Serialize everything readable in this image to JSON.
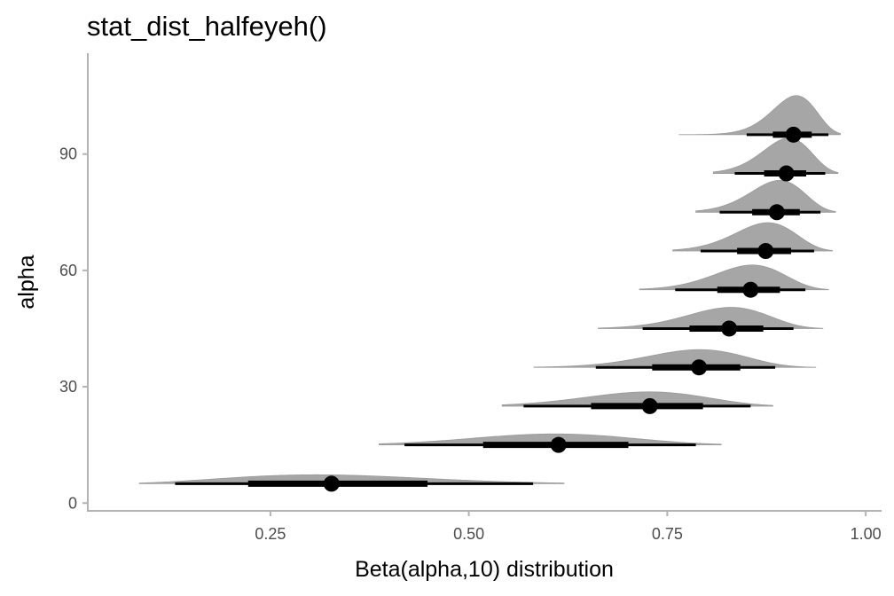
{
  "chart_data": {
    "type": "halfeye",
    "title": "stat_dist_halfeyeh()",
    "xlabel": "Beta(alpha,10) distribution",
    "ylabel": "alpha",
    "xlim": [
      0.02,
      1.02
    ],
    "ylim": [
      -2,
      116
    ],
    "x_ticks": [
      0.25,
      0.5,
      0.75,
      1.0
    ],
    "x_tick_labels": [
      "0.25",
      "0.50",
      "0.75",
      "1.00"
    ],
    "y_ticks": [
      0,
      30,
      60,
      90
    ],
    "y_tick_labels": [
      "0",
      "30",
      "60",
      "90"
    ],
    "grid": false,
    "legend": "none",
    "colors": {
      "density_fill": "#a6a6a6",
      "interval": "#000000",
      "point": "#000000",
      "axis": "#b3b3b3"
    },
    "series": [
      {
        "alpha": 5,
        "b": 10,
        "point": 0.327,
        "interval_66": [
          0.222,
          0.448
        ],
        "interval_95": [
          0.13,
          0.581
        ],
        "range": [
          0.085,
          0.62
        ]
      },
      {
        "alpha": 15,
        "b": 10,
        "point": 0.613,
        "interval_66": [
          0.518,
          0.701
        ],
        "interval_95": [
          0.419,
          0.786
        ],
        "range": [
          0.387,
          0.818
        ]
      },
      {
        "alpha": 25,
        "b": 10,
        "point": 0.728,
        "interval_66": [
          0.654,
          0.795
        ],
        "interval_95": [
          0.569,
          0.855
        ],
        "range": [
          0.542,
          0.883
        ]
      },
      {
        "alpha": 35,
        "b": 10,
        "point": 0.79,
        "interval_66": [
          0.731,
          0.842
        ],
        "interval_95": [
          0.66,
          0.886
        ],
        "range": [
          0.582,
          0.937
        ]
      },
      {
        "alpha": 45,
        "b": 10,
        "point": 0.828,
        "interval_66": [
          0.778,
          0.871
        ],
        "interval_95": [
          0.719,
          0.909
        ],
        "range": [
          0.663,
          0.946
        ]
      },
      {
        "alpha": 55,
        "b": 10,
        "point": 0.855,
        "interval_66": [
          0.813,
          0.892
        ],
        "interval_95": [
          0.76,
          0.924
        ],
        "range": [
          0.715,
          0.953
        ]
      },
      {
        "alpha": 65,
        "b": 10,
        "point": 0.874,
        "interval_66": [
          0.838,
          0.906
        ],
        "interval_95": [
          0.792,
          0.935
        ],
        "range": [
          0.757,
          0.958
        ]
      },
      {
        "alpha": 75,
        "b": 10,
        "point": 0.888,
        "interval_66": [
          0.857,
          0.917
        ],
        "interval_95": [
          0.816,
          0.943
        ],
        "range": [
          0.786,
          0.962
        ]
      },
      {
        "alpha": 85,
        "b": 10,
        "point": 0.9,
        "interval_66": [
          0.872,
          0.925
        ],
        "interval_95": [
          0.835,
          0.949
        ],
        "range": [
          0.808,
          0.965
        ]
      },
      {
        "alpha": 95,
        "b": 10,
        "point": 0.909,
        "interval_66": [
          0.883,
          0.932
        ],
        "interval_95": [
          0.85,
          0.953
        ],
        "range": [
          0.765,
          0.968
        ]
      }
    ]
  }
}
